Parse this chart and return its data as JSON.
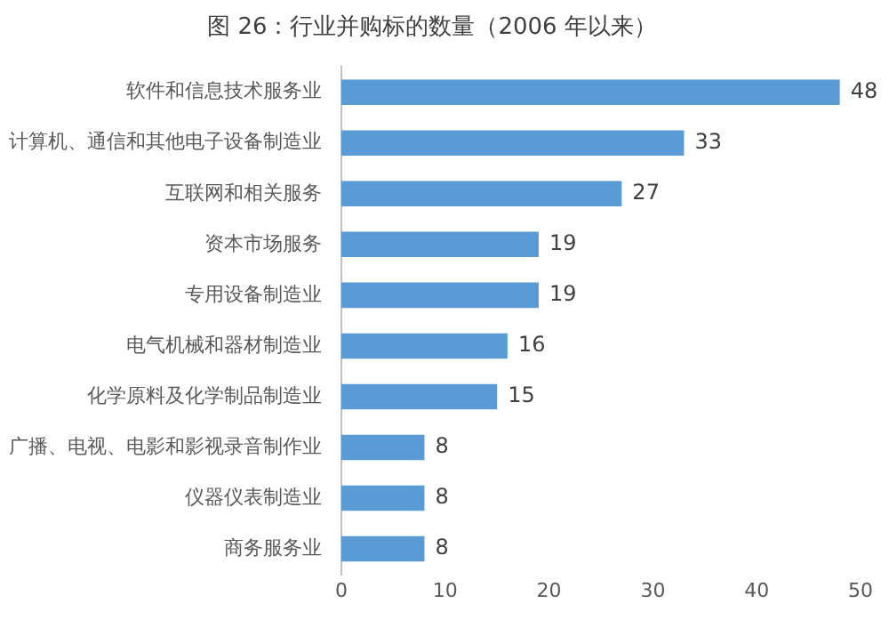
{
  "chart_data": {
    "type": "bar",
    "orientation": "horizontal",
    "title": "图 26：行业并购标的数量（2006 年以来）",
    "categories": [
      "软件和信息技术服务业",
      "计算机、通信和其他电子设备制造业",
      "互联网和相关服务",
      "资本市场服务",
      "专用设备制造业",
      "电气机械和器材制造业",
      "化学原料及化学制品制造业",
      "广播、电视、电影和影视录音制作业",
      "仪器仪表制造业",
      "商务服务业"
    ],
    "values": [
      48,
      33,
      27,
      19,
      19,
      16,
      15,
      8,
      8,
      8
    ],
    "color": "#5b9bd5",
    "xlim": [
      0,
      50
    ],
    "xticks": [
      0,
      10,
      20,
      30,
      40,
      50
    ],
    "grid": false,
    "data_labels": true
  }
}
